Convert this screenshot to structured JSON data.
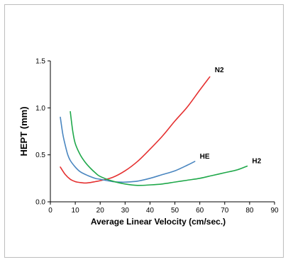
{
  "chart_data": {
    "type": "line",
    "title": "",
    "xlabel": "Average Linear Velocity (cm/sec.)",
    "ylabel": "HEPT (mm)",
    "xlim": [
      0,
      90
    ],
    "ylim": [
      0,
      1.5
    ],
    "xticks": [
      0,
      10,
      20,
      30,
      40,
      50,
      60,
      70,
      80,
      90
    ],
    "yticks": [
      0.0,
      0.5,
      1.0,
      1.5
    ],
    "xtick_labels": [
      "0",
      "10",
      "20",
      "30",
      "40",
      "50",
      "60",
      "70",
      "80",
      "90"
    ],
    "ytick_labels": [
      "0.0",
      "0.5",
      "1.0",
      "1.5"
    ],
    "grid": false,
    "legend": "none (series labeled inline at line ends)",
    "series": [
      {
        "name": "N2",
        "color": "#e53030",
        "points": [
          [
            4,
            0.37
          ],
          [
            6,
            0.29
          ],
          [
            8,
            0.24
          ],
          [
            10,
            0.215
          ],
          [
            12,
            0.205
          ],
          [
            14,
            0.2
          ],
          [
            16,
            0.205
          ],
          [
            18,
            0.215
          ],
          [
            20,
            0.225
          ],
          [
            25,
            0.26
          ],
          [
            30,
            0.33
          ],
          [
            35,
            0.43
          ],
          [
            40,
            0.56
          ],
          [
            45,
            0.7
          ],
          [
            50,
            0.86
          ],
          [
            55,
            1.01
          ],
          [
            60,
            1.19
          ],
          [
            64,
            1.33
          ]
        ]
      },
      {
        "name": "HE",
        "color": "#4a86c0",
        "points": [
          [
            4,
            0.9
          ],
          [
            5,
            0.72
          ],
          [
            6,
            0.6
          ],
          [
            7,
            0.5
          ],
          [
            8,
            0.44
          ],
          [
            10,
            0.37
          ],
          [
            12,
            0.32
          ],
          [
            15,
            0.28
          ],
          [
            18,
            0.25
          ],
          [
            20,
            0.24
          ],
          [
            25,
            0.215
          ],
          [
            28,
            0.21
          ],
          [
            30,
            0.21
          ],
          [
            35,
            0.22
          ],
          [
            40,
            0.25
          ],
          [
            45,
            0.29
          ],
          [
            50,
            0.33
          ],
          [
            55,
            0.39
          ],
          [
            58,
            0.43
          ]
        ]
      },
      {
        "name": "H2",
        "color": "#1fa84a",
        "points": [
          [
            8,
            0.96
          ],
          [
            9,
            0.75
          ],
          [
            10,
            0.62
          ],
          [
            12,
            0.5
          ],
          [
            14,
            0.42
          ],
          [
            16,
            0.36
          ],
          [
            18,
            0.31
          ],
          [
            20,
            0.27
          ],
          [
            25,
            0.22
          ],
          [
            30,
            0.19
          ],
          [
            35,
            0.175
          ],
          [
            40,
            0.18
          ],
          [
            45,
            0.19
          ],
          [
            50,
            0.21
          ],
          [
            55,
            0.23
          ],
          [
            60,
            0.25
          ],
          [
            65,
            0.28
          ],
          [
            70,
            0.31
          ],
          [
            75,
            0.34
          ],
          [
            79,
            0.38
          ]
        ]
      }
    ],
    "annotations": [
      {
        "text": "N2",
        "x": 66,
        "y": 1.38
      },
      {
        "text": "HE",
        "x": 60,
        "y": 0.46
      },
      {
        "text": "H2",
        "x": 81,
        "y": 0.41
      }
    ]
  }
}
